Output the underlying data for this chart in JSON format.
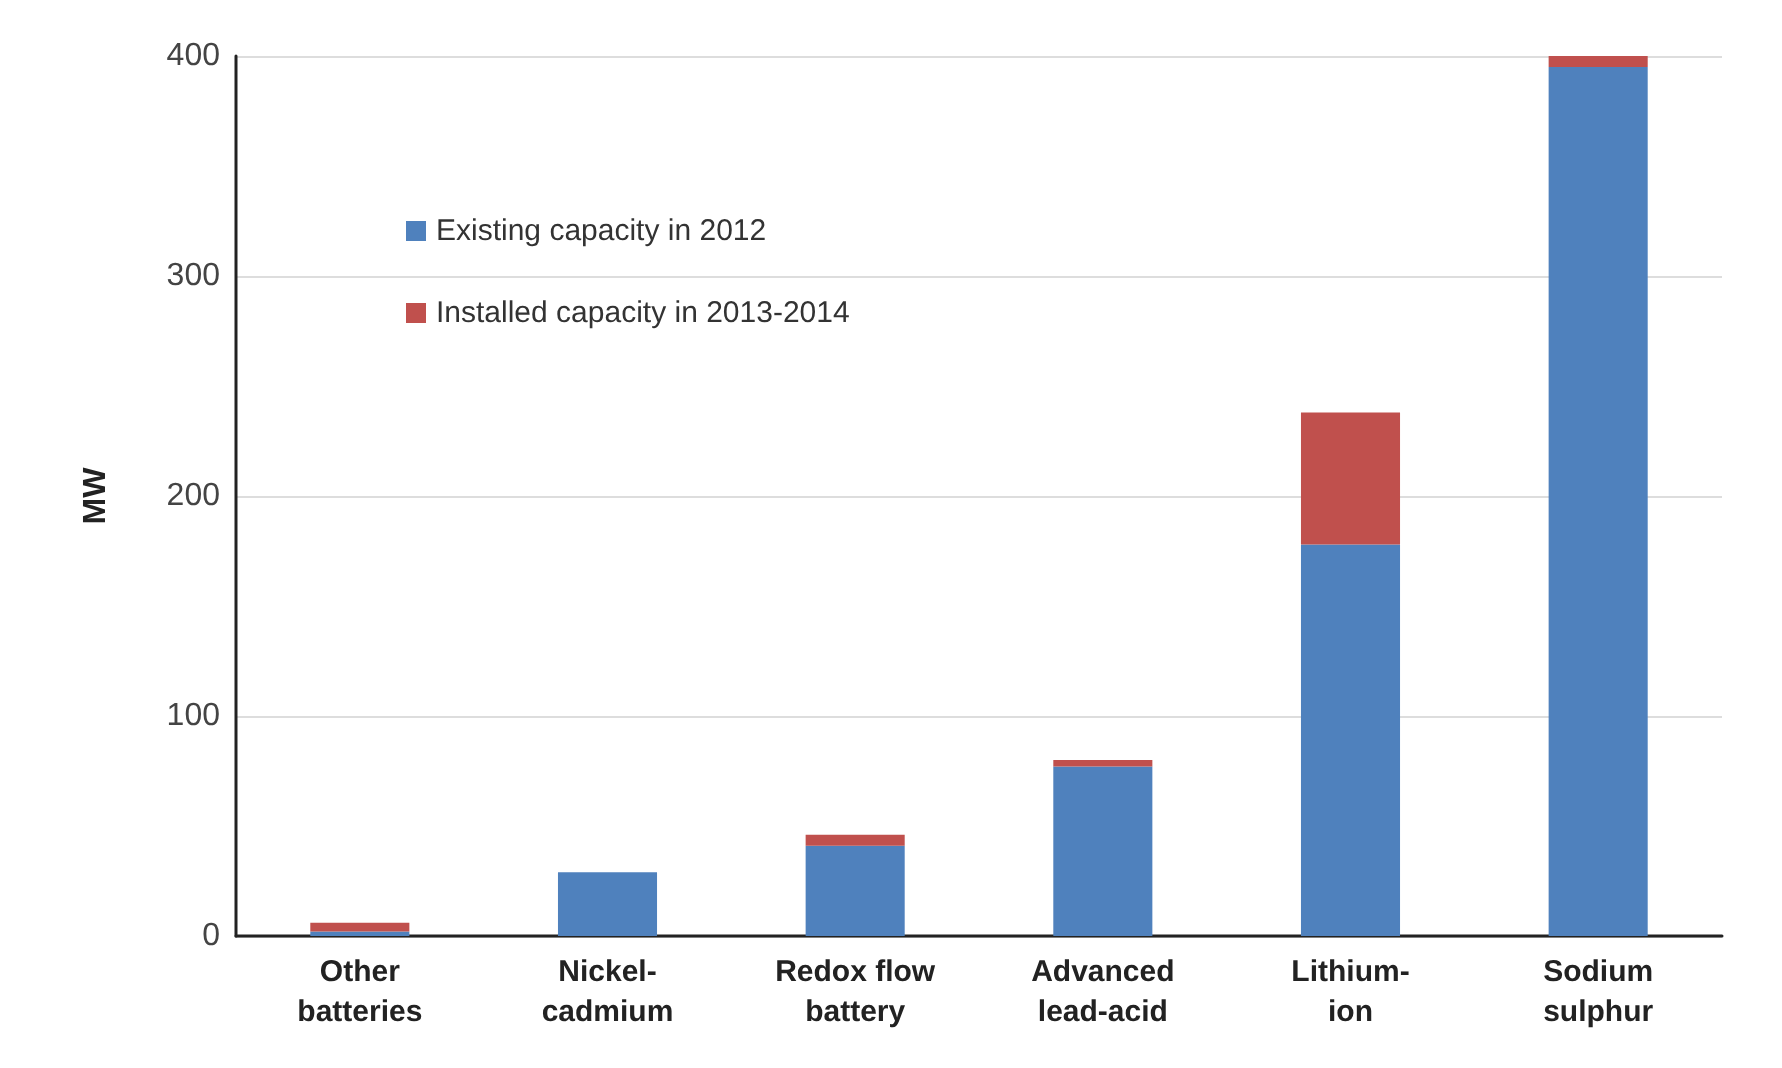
{
  "chart_data": {
    "type": "bar",
    "ylabel": "MW",
    "stacked": true,
    "categories": [
      "Other\nbatteries",
      "Nickel-\ncadmium",
      "Redox flow\nbattery",
      "Advanced\nlead-acid",
      "Lithium-\nion",
      "Sodium\nsulphur"
    ],
    "series": [
      {
        "name": "Existing capacity in 2012",
        "color": "#4f81bd",
        "values": [
          2,
          29,
          41,
          77,
          178,
          395
        ]
      },
      {
        "name": "Installed capacity in 2013-2014",
        "color": "#c0504d",
        "values": [
          4,
          0,
          5,
          3,
          60,
          5
        ]
      }
    ],
    "ylim": [
      0,
      400
    ],
    "yticks": [
      0,
      100,
      200,
      300,
      400
    ],
    "grid": "y",
    "legend": "top left"
  }
}
